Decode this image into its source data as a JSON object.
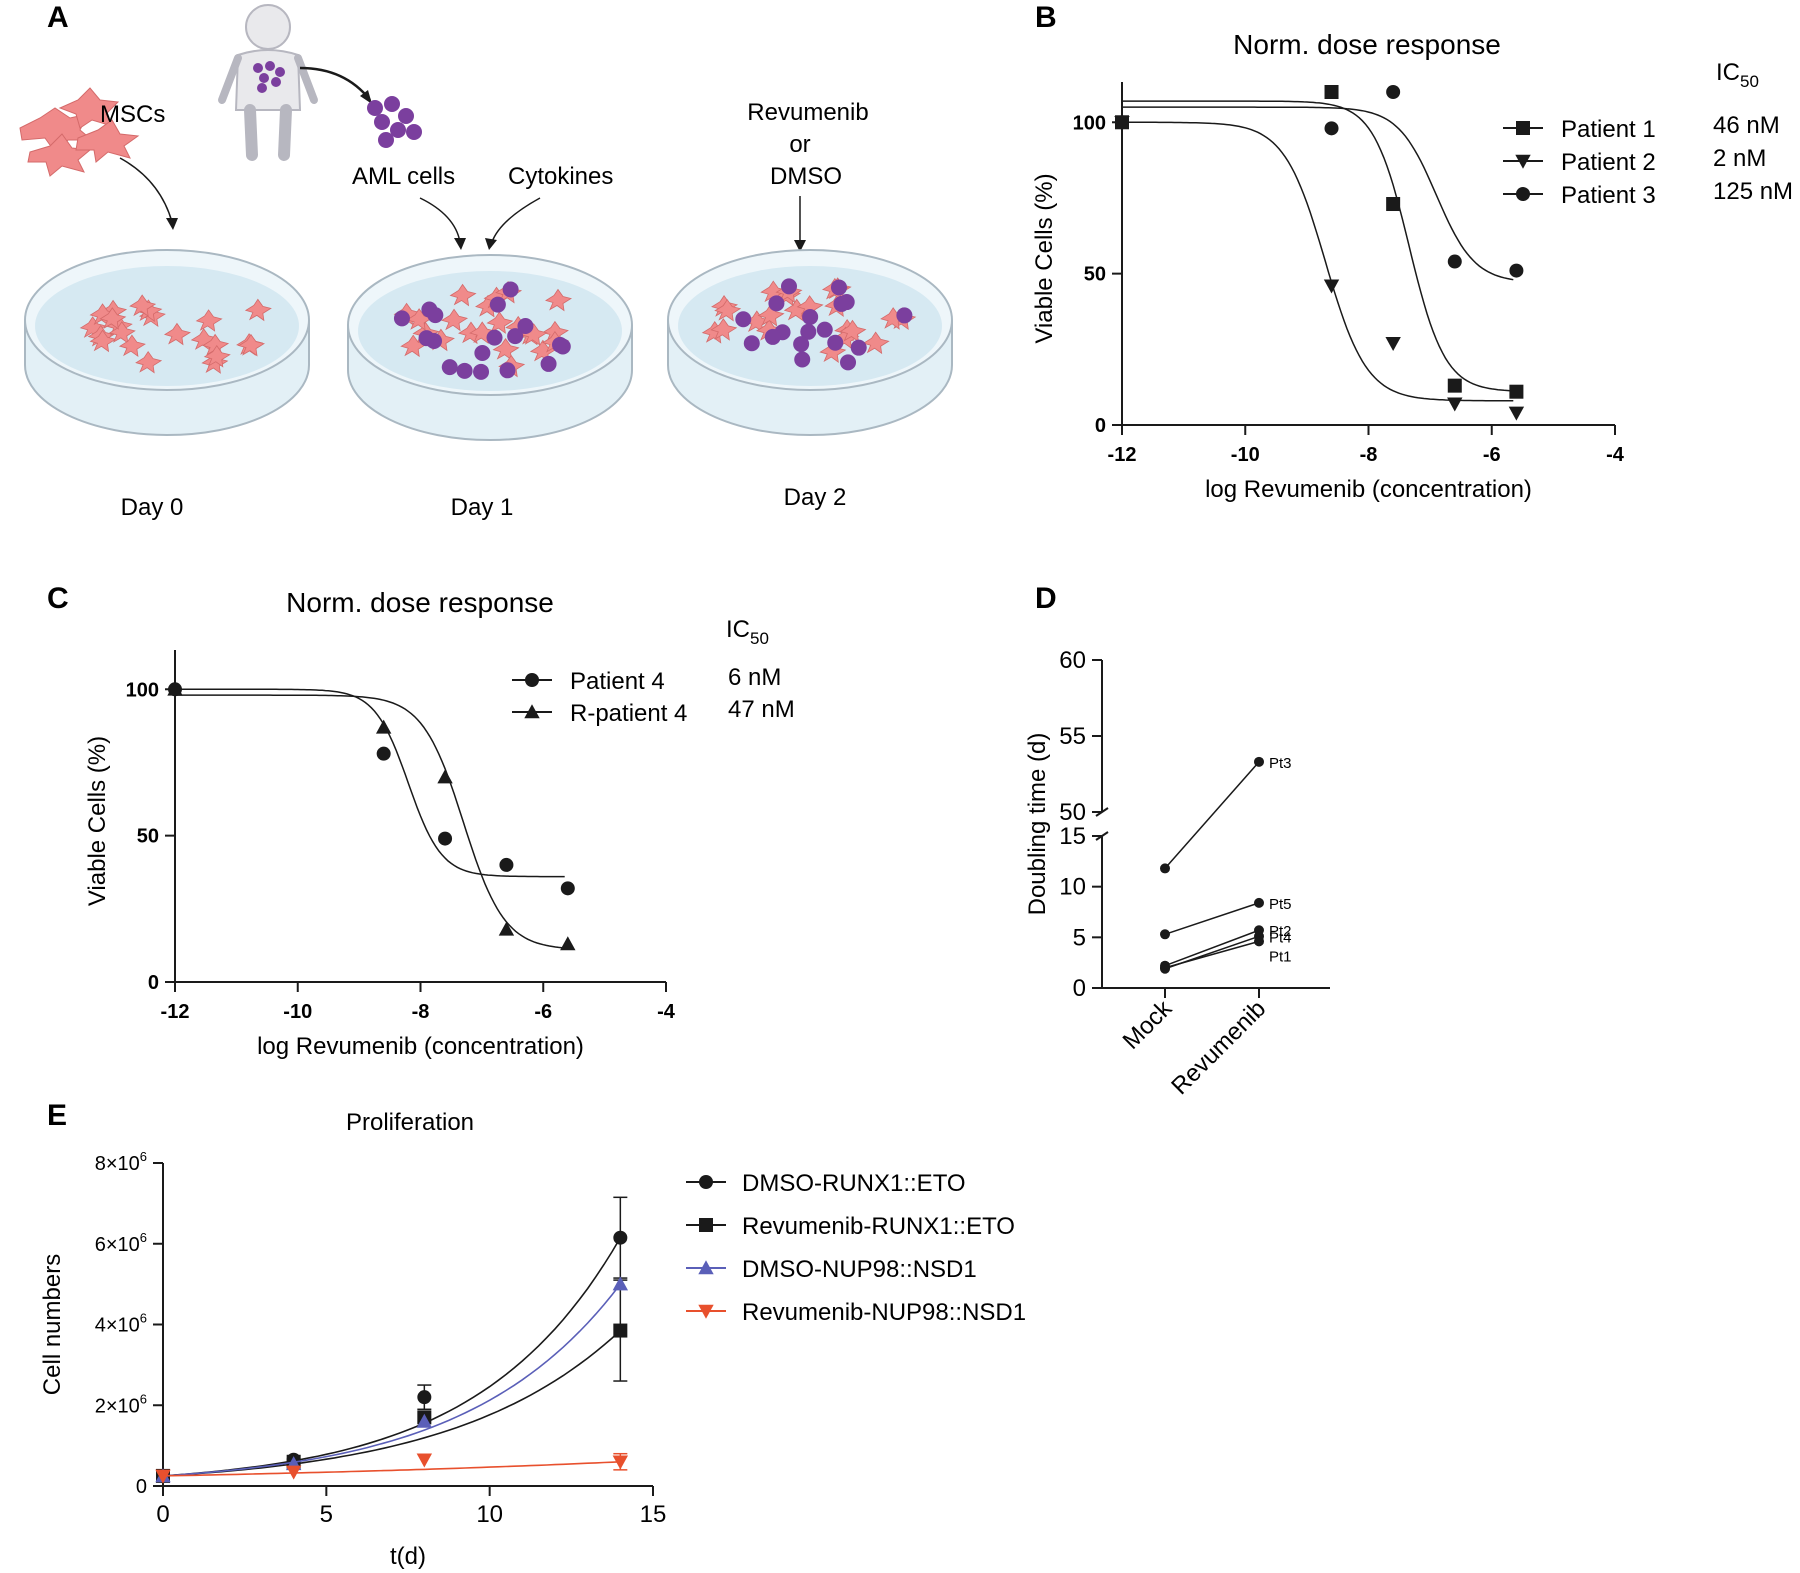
{
  "colors": {
    "ink": "#1a1a1a",
    "dish_fill": "#d6e9f2",
    "dish_rim": "#aab8c2",
    "msc": "#f08a8a",
    "aml": "#7b3f9e",
    "blue_series": "#5a5fb8",
    "red_series": "#e8502d"
  },
  "panelA": {
    "letter": "A",
    "msc_label": "MSCs",
    "aml_label": "AML cells",
    "cytokines_label": "Cytokines",
    "treatment_line1": "Revumenib",
    "treatment_line2": "or",
    "treatment_line3": "DMSO",
    "days": [
      "Day 0",
      "Day 1",
      "Day 2"
    ]
  },
  "panelB": {
    "letter": "B",
    "ic50_header": "IC",
    "ic50_sub": "50"
  },
  "panelC": {
    "letter": "C",
    "ic50_header": "IC",
    "ic50_sub": "50"
  },
  "panelD": {
    "letter": "D"
  },
  "panelE": {
    "letter": "E"
  },
  "chart_data": [
    {
      "panel": "B",
      "type": "scatter",
      "title": "Norm. dose response",
      "xlabel": "log Revumenib (concentration)",
      "ylabel": "Viable Cells (%)",
      "xlim": [
        -12,
        -4
      ],
      "ylim": [
        0,
        110
      ],
      "xticks": [
        -12,
        -10,
        -8,
        -6,
        -4
      ],
      "yticks": [
        0,
        50,
        100
      ],
      "legend_position": "top-right",
      "series": [
        {
          "name": "Patient 1",
          "marker": "square",
          "ic50": "46 nM",
          "x": [
            -12,
            -8.6,
            -7.6,
            -6.6,
            -5.6
          ],
          "y": [
            100,
            110,
            73,
            13,
            11
          ],
          "fit": {
            "top": 107,
            "bottom": 11,
            "logec50": -7.34,
            "hill": 1.5
          }
        },
        {
          "name": "Patient 2",
          "marker": "triangle-down",
          "ic50": "2 nM",
          "x": [
            -12,
            -8.6,
            -7.6,
            -6.6,
            -5.6
          ],
          "y": [
            100,
            46,
            27,
            7,
            4
          ],
          "fit": {
            "top": 100,
            "bottom": 8,
            "logec50": -8.7,
            "hill": 1.3
          }
        },
        {
          "name": "Patient 3",
          "marker": "circle",
          "ic50": "125 nM",
          "x": [
            -12,
            -8.6,
            -7.6,
            -6.6,
            -5.6
          ],
          "y": [
            100,
            98,
            110,
            54,
            51
          ],
          "fit": {
            "top": 105,
            "bottom": 47,
            "logec50": -6.9,
            "hill": 1.4
          }
        }
      ]
    },
    {
      "panel": "C",
      "type": "scatter",
      "title": "Norm. dose response",
      "xlabel": "log Revumenib (concentration)",
      "ylabel": "Viable Cells (%)",
      "xlim": [
        -12,
        -4
      ],
      "ylim": [
        0,
        110
      ],
      "xticks": [
        -12,
        -10,
        -8,
        -6,
        -4
      ],
      "yticks": [
        0,
        50,
        100
      ],
      "legend_position": "top-right",
      "series": [
        {
          "name": "Patient 4",
          "marker": "circle",
          "ic50": "6 nM",
          "x": [
            -12,
            -8.6,
            -7.6,
            -6.6,
            -5.6
          ],
          "y": [
            100,
            78,
            49,
            40,
            32
          ],
          "fit": {
            "top": 100,
            "bottom": 36,
            "logec50": -8.2,
            "hill": 1.6
          }
        },
        {
          "name": "R-patient 4",
          "marker": "triangle-up",
          "ic50": "47 nM",
          "x": [
            -12,
            -8.6,
            -7.6,
            -6.6,
            -5.6
          ],
          "y": [
            100,
            87,
            70,
            18,
            13
          ],
          "fit": {
            "top": 98,
            "bottom": 11,
            "logec50": -7.3,
            "hill": 1.3
          }
        }
      ]
    },
    {
      "panel": "D",
      "type": "line",
      "xlabel": "",
      "ylabel": "Doubling time (d)",
      "categories": [
        "Mock",
        "Revumenib"
      ],
      "axis_break": {
        "lower": [
          0,
          15
        ],
        "upper": [
          50,
          60
        ]
      },
      "yticks_lower": [
        0,
        5,
        10,
        15
      ],
      "yticks_upper": [
        50,
        55,
        60
      ],
      "series": [
        {
          "name": "Pt3",
          "values": [
            11.8,
            53.3
          ]
        },
        {
          "name": "Pt5",
          "values": [
            5.3,
            8.4
          ]
        },
        {
          "name": "Pt2",
          "values": [
            2.2,
            5.7
          ]
        },
        {
          "name": "Pt4",
          "values": [
            1.9,
            5.1
          ]
        },
        {
          "name": "Pt1",
          "values": [
            2.0,
            4.6
          ]
        }
      ]
    },
    {
      "panel": "E",
      "type": "scatter",
      "title": "Proliferation",
      "xlabel": "t(d)",
      "ylabel": "Cell numbers",
      "xlim": [
        0,
        15
      ],
      "ylim": [
        0,
        8000000
      ],
      "xticks": [
        0,
        5,
        10,
        15
      ],
      "yticks": [
        0,
        2000000,
        4000000,
        6000000,
        8000000
      ],
      "ytick_labels": [
        "0",
        "2×10",
        "4×10",
        "6×10",
        "8×10"
      ],
      "ytick_exp": "6",
      "legend_position": "right",
      "series": [
        {
          "name": "DMSO-RUNX1::ETO",
          "marker": "circle",
          "color": "#1a1a1a",
          "x": [
            0,
            4,
            8,
            14
          ],
          "y": [
            250000,
            650000,
            2200000,
            6150000
          ],
          "err": [
            0,
            0,
            300000,
            1000000
          ]
        },
        {
          "name": "Revumenib-RUNX1::ETO",
          "marker": "square",
          "color": "#1a1a1a",
          "x": [
            0,
            4,
            8,
            14
          ],
          "y": [
            250000,
            600000,
            1700000,
            3850000
          ],
          "err": [
            0,
            0,
            0,
            1250000
          ]
        },
        {
          "name": "DMSO-NUP98::NSD1",
          "marker": "triangle-up",
          "color": "#5a5fb8",
          "x": [
            0,
            4,
            8,
            14
          ],
          "y": [
            250000,
            550000,
            1600000,
            5000000
          ],
          "err": [
            0,
            0,
            0,
            0
          ]
        },
        {
          "name": "Revumenib-NUP98::NSD1",
          "marker": "triangle-down",
          "color": "#e8502d",
          "x": [
            0,
            4,
            8,
            14
          ],
          "y": [
            250000,
            350000,
            650000,
            600000
          ],
          "err": [
            0,
            0,
            0,
            200000
          ]
        }
      ]
    }
  ]
}
